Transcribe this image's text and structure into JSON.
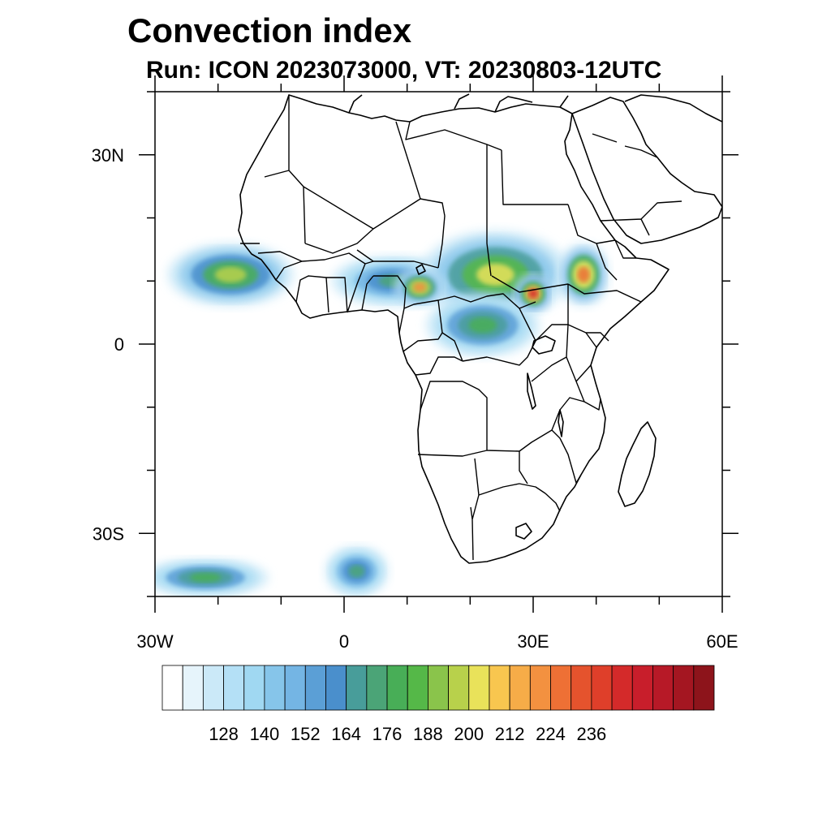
{
  "title": "Convection index",
  "subtitle": "Run: ICON 2023073000,  VT: 20230803-12UTC",
  "map": {
    "lon_range": [
      -30,
      60
    ],
    "lat_range": [
      -40,
      40
    ],
    "x_ticks": [
      {
        "lon": -30,
        "label": "30W"
      },
      {
        "lon": 0,
        "label": "0"
      },
      {
        "lon": 30,
        "label": "30E"
      },
      {
        "lon": 60,
        "label": "60E"
      }
    ],
    "y_ticks": [
      {
        "lat": 30,
        "label": "30N"
      },
      {
        "lat": 0,
        "label": "0"
      },
      {
        "lat": -30,
        "label": "30S"
      }
    ],
    "minor_lon_step": 10,
    "minor_lat_step": 10
  },
  "colorbar": {
    "colors": [
      "#ffffff",
      "#e6f4fb",
      "#cbe9f8",
      "#b4e0f6",
      "#a0d8f2",
      "#86c5ea",
      "#74b5e4",
      "#5b9fd6",
      "#4a8fcc",
      "#489d9a",
      "#4ba477",
      "#48ae57",
      "#55b848",
      "#8ac44b",
      "#b8d14b",
      "#e9e25a",
      "#f8c64f",
      "#f6ac48",
      "#f39140",
      "#ee7035",
      "#e5532d",
      "#df3f2a",
      "#d42a2a",
      "#c81e2b",
      "#b71927",
      "#a41621",
      "#8d141b"
    ],
    "labels": [
      "128",
      "140",
      "152",
      "164",
      "176",
      "188",
      "200",
      "212",
      "224",
      "236"
    ]
  },
  "fields": [
    {
      "name": "west-africa-convection",
      "lon": -18,
      "lat": 11,
      "rlon": 10,
      "rlat": 5,
      "level": 14
    },
    {
      "name": "sahel-band",
      "lon": 8,
      "lat": 10,
      "rlon": 10,
      "rlat": 4,
      "level": 10
    },
    {
      "name": "sudan-convection",
      "lon": 24,
      "lat": 11,
      "rlon": 12,
      "rlat": 7,
      "level": 15
    },
    {
      "name": "ethiopia-convection",
      "lon": 38,
      "lat": 11,
      "rlon": 4,
      "rlat": 5,
      "level": 19
    },
    {
      "name": "cameroon-convection",
      "lon": 12,
      "lat": 9,
      "rlon": 4,
      "rlat": 3,
      "level": 18
    },
    {
      "name": "central-africa-convection",
      "lon": 22,
      "lat": 3,
      "rlon": 9,
      "rlat": 5,
      "level": 11
    },
    {
      "name": "south-sudan-core",
      "lon": 30,
      "lat": 8,
      "rlon": 3,
      "rlat": 3,
      "level": 22
    },
    {
      "name": "southern-ocean-front-west",
      "lon": -22,
      "lat": -37,
      "rlon": 10,
      "rlat": 3,
      "level": 11
    },
    {
      "name": "southern-ocean-front-east",
      "lon": 2,
      "lat": -36,
      "rlon": 5,
      "rlat": 4,
      "level": 10
    }
  ]
}
